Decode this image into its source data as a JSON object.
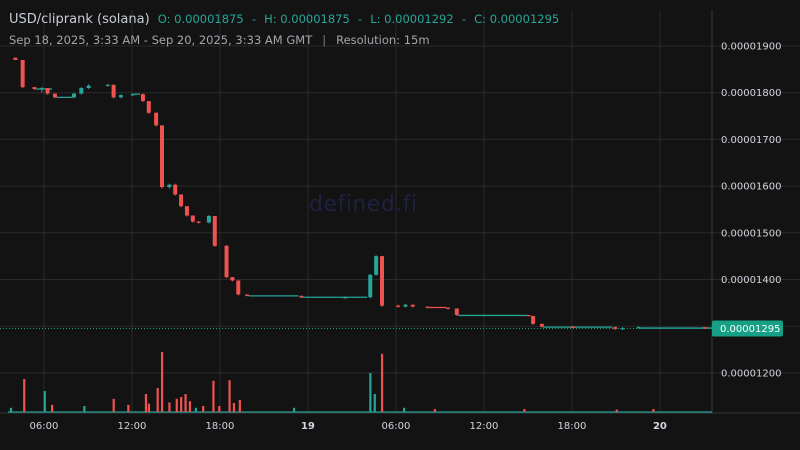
{
  "header": {
    "pair": "USD/cliprank (solana)",
    "open": "O: 0.00001875",
    "high": "H: 0.00001875",
    "low": "L: 0.00001292",
    "close": "C: 0.00001295",
    "date_range": "Sep 18, 2025, 3:33 AM - Sep 20, 2025, 3:33 AM GMT",
    "separator": "|",
    "resolution": "Resolution: 15m"
  },
  "watermark": "defined.fi",
  "last_price_label": "0.00001295",
  "colors": {
    "background": "#131313",
    "up": "#26a69a",
    "down": "#ef5350",
    "grid": "#2a2a2a",
    "last_price_tag": "#16a085"
  },
  "chart_data": {
    "type": "candlestick",
    "title": "USD/cliprank (solana)",
    "x_unit": "hours since Sep 18, 2025 03:33 GMT",
    "x_range": [
      0,
      48
    ],
    "x_ticks": [
      {
        "t": 2.45,
        "label": "06:00",
        "bold": false
      },
      {
        "t": 8.45,
        "label": "12:00",
        "bold": false
      },
      {
        "t": 14.45,
        "label": "18:00",
        "bold": false
      },
      {
        "t": 20.45,
        "label": "19",
        "bold": true
      },
      {
        "t": 26.45,
        "label": "06:00",
        "bold": false
      },
      {
        "t": 32.45,
        "label": "12:00",
        "bold": false
      },
      {
        "t": 38.45,
        "label": "18:00",
        "bold": false
      },
      {
        "t": 44.45,
        "label": "20",
        "bold": true
      }
    ],
    "y_range": [
      1.13e-05,
      1.99e-05
    ],
    "y_ticks": [
      "0.00001200",
      "0.00001300",
      "0.00001400",
      "0.00001500",
      "0.00001600",
      "0.00001700",
      "0.00001800",
      "0.00001900"
    ],
    "last_price": 1.295e-05,
    "candles": [
      {
        "t": 0.5,
        "o": 1.875e-05,
        "h": 1.875e-05,
        "l": 1.87e-05,
        "c": 1.87e-05
      },
      {
        "t": 1.0,
        "o": 1.87e-05,
        "h": 1.87e-05,
        "l": 1.81e-05,
        "c": 1.812e-05
      },
      {
        "t": 1.8,
        "o": 1.812e-05,
        "h": 1.812e-05,
        "l": 1.806e-05,
        "c": 1.808e-05
      },
      {
        "t": 2.3,
        "o": 1.808e-05,
        "h": 1.812e-05,
        "l": 1.8e-05,
        "c": 1.81e-05
      },
      {
        "t": 2.7,
        "o": 1.81e-05,
        "h": 1.81e-05,
        "l": 1.796e-05,
        "c": 1.798e-05
      },
      {
        "t": 3.2,
        "o": 1.798e-05,
        "h": 1.798e-05,
        "l": 1.788e-05,
        "c": 1.79e-05
      },
      {
        "t": 4.5,
        "o": 1.79e-05,
        "h": 1.8e-05,
        "l": 1.788e-05,
        "c": 1.798e-05
      },
      {
        "t": 5.0,
        "o": 1.798e-05,
        "h": 1.812e-05,
        "l": 1.796e-05,
        "c": 1.81e-05
      },
      {
        "t": 5.5,
        "o": 1.81e-05,
        "h": 1.818e-05,
        "l": 1.808e-05,
        "c": 1.815e-05
      },
      {
        "t": 6.8,
        "o": 1.815e-05,
        "h": 1.818e-05,
        "l": 1.813e-05,
        "c": 1.817e-05
      },
      {
        "t": 7.2,
        "o": 1.817e-05,
        "h": 1.817e-05,
        "l": 1.788e-05,
        "c": 1.79e-05
      },
      {
        "t": 7.7,
        "o": 1.79e-05,
        "h": 1.796e-05,
        "l": 1.788e-05,
        "c": 1.795e-05
      },
      {
        "t": 8.5,
        "o": 1.795e-05,
        "h": 1.799e-05,
        "l": 1.793e-05,
        "c": 1.797e-05
      },
      {
        "t": 9.2,
        "o": 1.797e-05,
        "h": 1.798e-05,
        "l": 1.78e-05,
        "c": 1.782e-05
      },
      {
        "t": 9.6,
        "o": 1.782e-05,
        "h": 1.782e-05,
        "l": 1.755e-05,
        "c": 1.757e-05
      },
      {
        "t": 10.1,
        "o": 1.757e-05,
        "h": 1.758e-05,
        "l": 1.728e-05,
        "c": 1.73e-05
      },
      {
        "t": 10.5,
        "o": 1.73e-05,
        "h": 1.73e-05,
        "l": 1.595e-05,
        "c": 1.598e-05
      },
      {
        "t": 11.0,
        "o": 1.598e-05,
        "h": 1.605e-05,
        "l": 1.595e-05,
        "c": 1.603e-05
      },
      {
        "t": 11.4,
        "o": 1.603e-05,
        "h": 1.605e-05,
        "l": 1.58e-05,
        "c": 1.582e-05
      },
      {
        "t": 11.8,
        "o": 1.582e-05,
        "h": 1.582e-05,
        "l": 1.555e-05,
        "c": 1.557e-05
      },
      {
        "t": 12.2,
        "o": 1.557e-05,
        "h": 1.557e-05,
        "l": 1.535e-05,
        "c": 1.537e-05
      },
      {
        "t": 12.6,
        "o": 1.537e-05,
        "h": 1.537e-05,
        "l": 1.522e-05,
        "c": 1.524e-05
      },
      {
        "t": 13.0,
        "o": 1.524e-05,
        "h": 1.525e-05,
        "l": 1.52e-05,
        "c": 1.522e-05
      },
      {
        "t": 13.7,
        "o": 1.522e-05,
        "h": 1.538e-05,
        "l": 1.52e-05,
        "c": 1.536e-05
      },
      {
        "t": 14.1,
        "o": 1.536e-05,
        "h": 1.536e-05,
        "l": 1.47e-05,
        "c": 1.472e-05
      },
      {
        "t": 14.9,
        "o": 1.472e-05,
        "h": 1.474e-05,
        "l": 1.403e-05,
        "c": 1.405e-05
      },
      {
        "t": 15.3,
        "o": 1.405e-05,
        "h": 1.405e-05,
        "l": 1.396e-05,
        "c": 1.398e-05
      },
      {
        "t": 15.7,
        "o": 1.398e-05,
        "h": 1.398e-05,
        "l": 1.366e-05,
        "c": 1.368e-05
      },
      {
        "t": 16.3,
        "o": 1.368e-05,
        "h": 1.368e-05,
        "l": 1.364e-05,
        "c": 1.365e-05
      },
      {
        "t": 20.0,
        "o": 1.365e-05,
        "h": 1.366e-05,
        "l": 1.36e-05,
        "c": 1.362e-05
      },
      {
        "t": 23.0,
        "o": 1.362e-05,
        "h": 1.364e-05,
        "l": 1.36e-05,
        "c": 1.362e-05
      },
      {
        "t": 24.7,
        "o": 1.362e-05,
        "h": 1.412e-05,
        "l": 1.36e-05,
        "c": 1.41e-05
      },
      {
        "t": 25.1,
        "o": 1.41e-05,
        "h": 1.452e-05,
        "l": 1.408e-05,
        "c": 1.45e-05
      },
      {
        "t": 25.5,
        "o": 1.45e-05,
        "h": 1.45e-05,
        "l": 1.342e-05,
        "c": 1.344e-05
      },
      {
        "t": 26.6,
        "o": 1.344e-05,
        "h": 1.346e-05,
        "l": 1.34e-05,
        "c": 1.342e-05
      },
      {
        "t": 27.1,
        "o": 1.342e-05,
        "h": 1.348e-05,
        "l": 1.34e-05,
        "c": 1.346e-05
      },
      {
        "t": 27.6,
        "o": 1.346e-05,
        "h": 1.346e-05,
        "l": 1.34e-05,
        "c": 1.342e-05
      },
      {
        "t": 28.6,
        "o": 1.342e-05,
        "h": 1.342e-05,
        "l": 1.338e-05,
        "c": 1.34e-05
      },
      {
        "t": 30.0,
        "o": 1.34e-05,
        "h": 1.34e-05,
        "l": 1.336e-05,
        "c": 1.338e-05
      },
      {
        "t": 30.6,
        "o": 1.338e-05,
        "h": 1.338e-05,
        "l": 1.322e-05,
        "c": 1.324e-05
      },
      {
        "t": 35.5,
        "o": 1.324e-05,
        "h": 1.324e-05,
        "l": 1.321e-05,
        "c": 1.322e-05
      },
      {
        "t": 35.8,
        "o": 1.322e-05,
        "h": 1.322e-05,
        "l": 1.303e-05,
        "c": 1.305e-05
      },
      {
        "t": 36.4,
        "o": 1.305e-05,
        "h": 1.305e-05,
        "l": 1.297e-05,
        "c": 1.299e-05
      },
      {
        "t": 38.5,
        "o": 1.299e-05,
        "h": 1.3e-05,
        "l": 1.296e-05,
        "c": 1.298e-05
      },
      {
        "t": 41.4,
        "o": 1.298e-05,
        "h": 1.299e-05,
        "l": 1.292e-05,
        "c": 1.294e-05
      },
      {
        "t": 41.9,
        "o": 1.294e-05,
        "h": 1.298e-05,
        "l": 1.292e-05,
        "c": 1.296e-05
      },
      {
        "t": 43.0,
        "o": 1.296e-05,
        "h": 1.3e-05,
        "l": 1.295e-05,
        "c": 1.298e-05
      },
      {
        "t": 47.5,
        "o": 1.298e-05,
        "h": 1.298e-05,
        "l": 1.294e-05,
        "c": 1.295e-05
      }
    ],
    "flat_segments": [
      {
        "t0": 1.9,
        "t1": 3.0,
        "price": 1.808e-05,
        "dir": "up"
      },
      {
        "t0": 3.3,
        "t1": 4.4,
        "price": 1.79e-05,
        "dir": "up"
      },
      {
        "t0": 8.6,
        "t1": 9.0,
        "price": 1.797e-05,
        "dir": "up"
      },
      {
        "t0": 16.4,
        "t1": 19.8,
        "price": 1.365e-05,
        "dir": "up"
      },
      {
        "t0": 20.1,
        "t1": 24.5,
        "price": 1.362e-05,
        "dir": "up"
      },
      {
        "t0": 28.7,
        "t1": 29.9,
        "price": 1.34e-05,
        "dir": "down"
      },
      {
        "t0": 30.7,
        "t1": 35.4,
        "price": 1.323e-05,
        "dir": "up"
      },
      {
        "t0": 36.5,
        "t1": 41.2,
        "price": 1.298e-05,
        "dir": "up"
      },
      {
        "t0": 43.1,
        "t1": 48.0,
        "price": 1.296e-05,
        "dir": "up"
      }
    ],
    "volume": [
      {
        "t": 0.2,
        "v": 0.07,
        "dir": "up"
      },
      {
        "t": 1.1,
        "v": 0.55,
        "dir": "down"
      },
      {
        "t": 2.5,
        "v": 0.35,
        "dir": "up"
      },
      {
        "t": 3.0,
        "v": 0.12,
        "dir": "down"
      },
      {
        "t": 5.2,
        "v": 0.1,
        "dir": "up"
      },
      {
        "t": 7.2,
        "v": 0.22,
        "dir": "down"
      },
      {
        "t": 8.2,
        "v": 0.12,
        "dir": "down"
      },
      {
        "t": 9.4,
        "v": 0.3,
        "dir": "down"
      },
      {
        "t": 9.6,
        "v": 0.14,
        "dir": "down"
      },
      {
        "t": 10.2,
        "v": 0.4,
        "dir": "down"
      },
      {
        "t": 10.5,
        "v": 1.0,
        "dir": "down"
      },
      {
        "t": 11.0,
        "v": 0.16,
        "dir": "down"
      },
      {
        "t": 11.5,
        "v": 0.22,
        "dir": "down"
      },
      {
        "t": 11.8,
        "v": 0.25,
        "dir": "down"
      },
      {
        "t": 12.1,
        "v": 0.3,
        "dir": "down"
      },
      {
        "t": 12.4,
        "v": 0.18,
        "dir": "down"
      },
      {
        "t": 12.8,
        "v": 0.07,
        "dir": "up"
      },
      {
        "t": 13.3,
        "v": 0.1,
        "dir": "down"
      },
      {
        "t": 14.0,
        "v": 0.52,
        "dir": "down"
      },
      {
        "t": 14.4,
        "v": 0.1,
        "dir": "down"
      },
      {
        "t": 15.1,
        "v": 0.53,
        "dir": "down"
      },
      {
        "t": 15.4,
        "v": 0.15,
        "dir": "down"
      },
      {
        "t": 15.8,
        "v": 0.2,
        "dir": "down"
      },
      {
        "t": 19.5,
        "v": 0.07,
        "dir": "up"
      },
      {
        "t": 24.7,
        "v": 0.65,
        "dir": "up"
      },
      {
        "t": 25.0,
        "v": 0.3,
        "dir": "up"
      },
      {
        "t": 25.5,
        "v": 0.97,
        "dir": "down"
      },
      {
        "t": 27.0,
        "v": 0.07,
        "dir": "up"
      },
      {
        "t": 29.1,
        "v": 0.05,
        "dir": "down"
      },
      {
        "t": 35.2,
        "v": 0.05,
        "dir": "down"
      },
      {
        "t": 41.5,
        "v": 0.04,
        "dir": "down"
      },
      {
        "t": 44.0,
        "v": 0.05,
        "dir": "down"
      }
    ]
  }
}
